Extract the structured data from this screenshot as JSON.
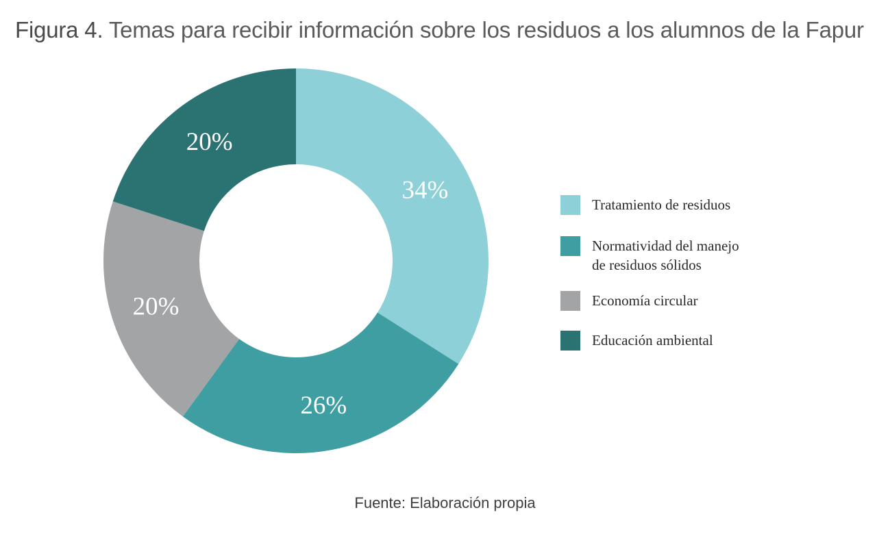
{
  "figure": {
    "title_prefix": "Figura 4.",
    "title_text": "Temas para recibir información sobre los residuos a los alumnos de la Fapur",
    "source_label": "Fuente:",
    "source_text": "Elaboración propia"
  },
  "chart_data": {
    "type": "pie",
    "donut": true,
    "title": "Temas para recibir información sobre los residuos a los alumnos de la Fapur",
    "legend_position": "right",
    "slices": [
      {
        "label": "Tratamiento de residuos",
        "legend_lines": [
          "Tratamiento de residuos"
        ],
        "value": 34,
        "display": "34%",
        "color": "#8dd0d7"
      },
      {
        "label": "Normatividad del manejo de residuos sólidos",
        "legend_lines": [
          "Normatividad del manejo",
          "de residuos sólidos"
        ],
        "value": 26,
        "display": "26%",
        "color": "#3f9ea2"
      },
      {
        "label": "Economía circular",
        "legend_lines": [
          "Economía circular"
        ],
        "value": 20,
        "display": "20%",
        "color": "#a3a4a6"
      },
      {
        "label": "Educación ambiental",
        "legend_lines": [
          "Educación ambiental"
        ],
        "value": 20,
        "display": "20%",
        "color": "#2b7273"
      }
    ]
  }
}
